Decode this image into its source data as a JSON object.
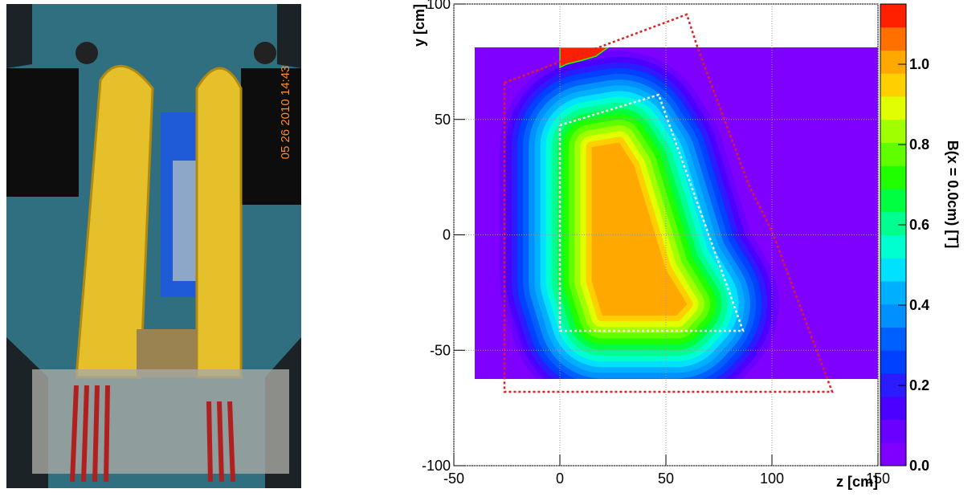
{
  "photo": {
    "timestamp": "05 26 2010 14:43"
  },
  "chart_data": {
    "type": "heatmap",
    "xlabel": "z [cm]",
    "ylabel": "y [cm]",
    "xlim": [
      -50,
      150
    ],
    "xticks": [
      -50,
      0,
      50,
      100,
      150
    ],
    "ylim": [
      -100,
      100
    ],
    "yticks": [
      -100,
      -50,
      0,
      50,
      100
    ],
    "grid": true,
    "colorbar": {
      "label": "B(x = 0.0cm) [T]",
      "lim": [
        0,
        1.15
      ],
      "ticks": [
        {
          "value": 0,
          "label": "0.0"
        },
        {
          "value": 0.2,
          "label": "0.2"
        },
        {
          "value": 0.4,
          "label": "0.4"
        },
        {
          "value": 0.6,
          "label": "0.6"
        },
        {
          "value": 0.8,
          "label": "0.8"
        },
        {
          "value": 1,
          "label": "1.0"
        }
      ],
      "palette": [
        "#8000ff",
        "#6a00ff",
        "#4b00ff",
        "#2a1cff",
        "#0040ff",
        "#0060ff",
        "#0090ff",
        "#00b0ff",
        "#00e0ff",
        "#00ffd0",
        "#00ff90",
        "#00ff40",
        "#20ff00",
        "#60ff00",
        "#a0ff00",
        "#e0ff00",
        "#ffd000",
        "#ffa800",
        "#ff7000",
        "#ff2000"
      ]
    }
  }
}
